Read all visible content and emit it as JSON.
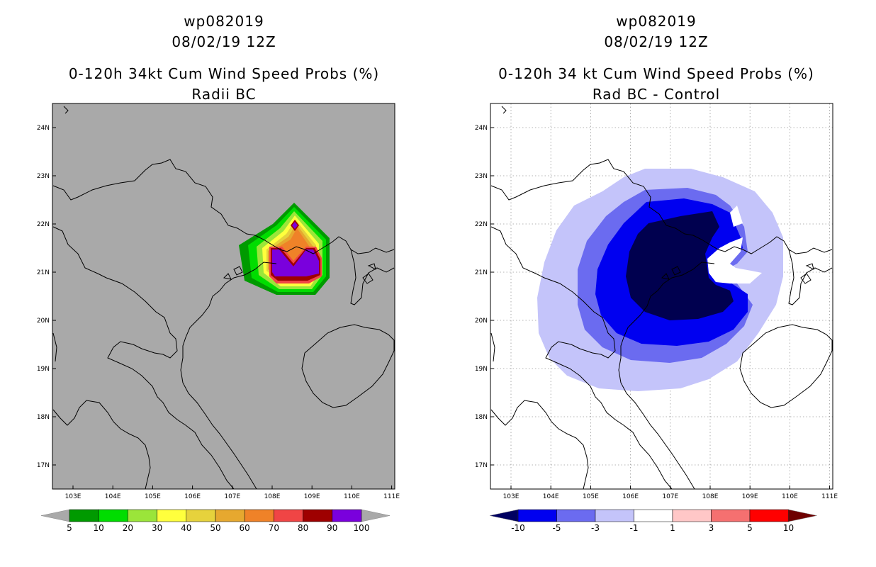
{
  "left_panel": {
    "title_lines": [
      "wp082019",
      "08/02/19 12Z",
      "0-120h 34kt Cum Wind Speed Probs (%)",
      "Radii BC"
    ],
    "lat_labels": [
      "24N",
      "23N",
      "22N",
      "21N",
      "20N",
      "19N",
      "18N",
      "17N"
    ],
    "lon_labels": [
      "103E",
      "104E",
      "105E",
      "106E",
      "107E",
      "108E",
      "109E",
      "110E",
      "111E"
    ],
    "colorbar": {
      "labels": [
        "5",
        "10",
        "20",
        "30",
        "40",
        "50",
        "60",
        "70",
        "80",
        "90",
        "100"
      ],
      "colors": [
        "#009a00",
        "#00dd00",
        "#9be53a",
        "#ffff3d",
        "#e6d23c",
        "#e6a82f",
        "#ef8228",
        "#f04545",
        "#9e0000",
        "#7a00dd"
      ],
      "under_color": "#a9a9a9",
      "over_color": "#a9a9a9"
    }
  },
  "right_panel": {
    "title_lines": [
      "wp082019",
      "08/02/19 12Z",
      "0-120h 34 kt Cum Wind Speed Probs (%)",
      "Rad BC - Control"
    ],
    "lat_labels": [
      "24N",
      "23N",
      "22N",
      "21N",
      "20N",
      "19N",
      "18N",
      "17N"
    ],
    "lon_labels": [
      "103E",
      "104E",
      "105E",
      "106E",
      "107E",
      "108E",
      "109E",
      "110E",
      "111E"
    ],
    "colorbar": {
      "labels": [
        "-10",
        "-5",
        "-3",
        "-1",
        "1",
        "3",
        "5",
        "10"
      ],
      "colors": [
        "#0000f0",
        "#6b6bf0",
        "#c4c4fa",
        "#ffffff",
        "#ffc7c7",
        "#f57070",
        "#ff0000"
      ],
      "under_color": "#000060",
      "over_color": "#6e0000"
    }
  },
  "chart_data": {
    "type": "map",
    "left": {
      "title": "0-120h 34kt Cum Wind Speed Probs (%)",
      "subtitle": "Radii BC",
      "storm": "wp082019",
      "valid": "08/02/19 12Z",
      "lon_range": [
        102.5,
        111
      ],
      "lat_range": [
        16.5,
        24.5
      ],
      "bins": [
        5,
        10,
        20,
        30,
        40,
        50,
        60,
        70,
        80,
        90,
        100
      ]
    },
    "right": {
      "title": "0-120h 34 kt Cum Wind Speed Probs (%)",
      "subtitle": "Rad BC - Control",
      "storm": "wp082019",
      "valid": "08/02/19 12Z",
      "lon_range": [
        102.5,
        111
      ],
      "lat_range": [
        16.5,
        24.5
      ],
      "bins": [
        -10,
        -5,
        -3,
        -1,
        1,
        3,
        5,
        10
      ],
      "grid": true
    }
  }
}
